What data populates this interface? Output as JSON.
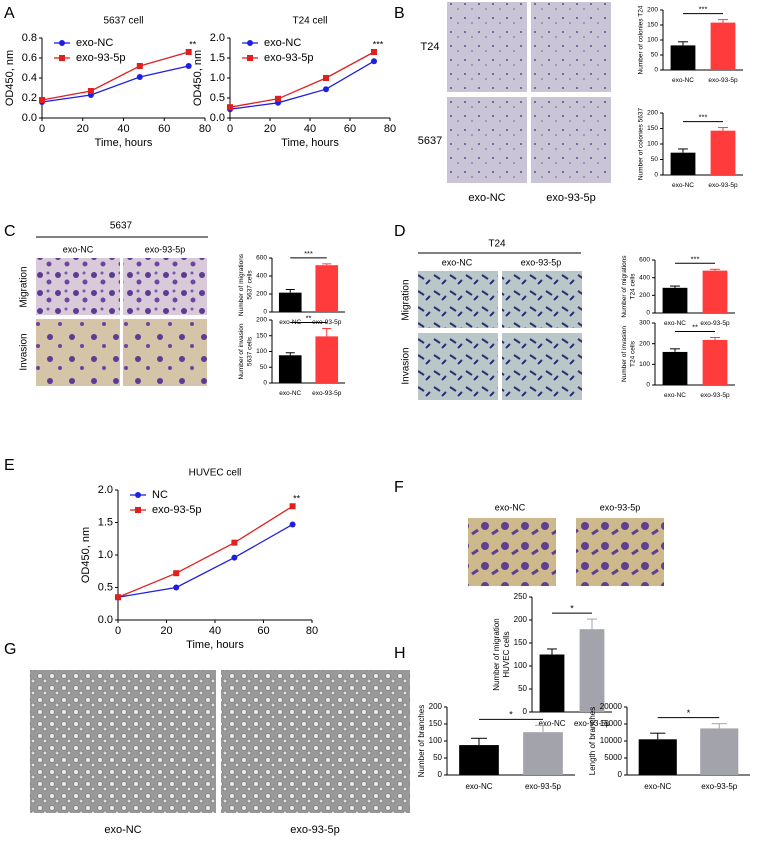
{
  "panels": {
    "letters": [
      "A",
      "B",
      "C",
      "D",
      "E",
      "F",
      "G",
      "H"
    ],
    "B": {
      "rows": [
        "T24",
        "5637"
      ],
      "cols": [
        "exo-NC",
        "exo-93-5p"
      ]
    },
    "C": {
      "header": "5637",
      "cols": [
        "exo-NC",
        "exo-93-5p"
      ],
      "rows": [
        "Migration",
        "Invasion"
      ]
    },
    "D": {
      "header": "T24",
      "cols": [
        "exo-NC",
        "exo-93-5p"
      ],
      "rows": [
        "Migration",
        "Invasion"
      ]
    },
    "F": {
      "cols": [
        "exo-NC",
        "exo-93-5p"
      ]
    },
    "G": {
      "cols": [
        "exo-NC",
        "exo-93-5p"
      ]
    }
  },
  "chart_data": [
    {
      "type": "line",
      "title": "5637 cell",
      "xlabel": "Time, hours",
      "ylabel": "OD450, nm",
      "x": [
        0,
        24,
        48,
        72
      ],
      "series": [
        {
          "name": "exo-NC",
          "color": "#1f1fe0",
          "marker": "circle",
          "values": [
            0.16,
            0.23,
            0.41,
            0.52
          ]
        },
        {
          "name": "exo-93-5p",
          "color": "#e01f1f",
          "marker": "square",
          "values": [
            0.18,
            0.27,
            0.52,
            0.66
          ]
        }
      ],
      "xlim": [
        0,
        80
      ],
      "xticks": [
        0,
        20,
        40,
        60,
        80
      ],
      "ylim": [
        0,
        0.8
      ],
      "yticks": [
        {
          "value": 0,
          "label": "0.0"
        },
        0.2,
        0.4,
        0.6,
        0.8
      ],
      "annotation": "**"
    },
    {
      "type": "line",
      "title": "T24 cell",
      "xlabel": "Time, hours",
      "ylabel": "OD450, nm",
      "x": [
        0,
        24,
        48,
        72
      ],
      "series": [
        {
          "name": "exo-NC",
          "color": "#1f1fe0",
          "marker": "circle",
          "values": [
            0.22,
            0.38,
            0.72,
            1.42
          ]
        },
        {
          "name": "exo-93-5p",
          "color": "#e01f1f",
          "marker": "square",
          "values": [
            0.27,
            0.48,
            1.0,
            1.65
          ]
        }
      ],
      "xlim": [
        0,
        80
      ],
      "xticks": [
        0,
        20,
        40,
        60,
        80
      ],
      "ylim": [
        0,
        2
      ],
      "yticks": [
        {
          "value": 0,
          "label": "0.0"
        },
        0.5,
        {
          "value": 1,
          "label": "1.0"
        },
        1.5,
        {
          "value": 2,
          "label": "2.0"
        }
      ],
      "annotation": "***"
    },
    {
      "type": "bar",
      "ylabel": [
        "Number of colonies T24"
      ],
      "categories": [
        "exo-NC",
        "exo-93-5p"
      ],
      "values": [
        82,
        158
      ],
      "errors": [
        12,
        10
      ],
      "colors": [
        "#000000",
        "#ff3b3b"
      ],
      "ylim": [
        0,
        200
      ],
      "yticks": [
        0,
        50,
        100,
        150,
        200
      ],
      "annotation": "***"
    },
    {
      "type": "bar",
      "ylabel": [
        "Number of colonies 5637"
      ],
      "categories": [
        "exo-NC",
        "exo-93-5p"
      ],
      "values": [
        72,
        143
      ],
      "errors": [
        12,
        10
      ],
      "colors": [
        "#000000",
        "#ff3b3b"
      ],
      "ylim": [
        0,
        200
      ],
      "yticks": [
        0,
        50,
        100,
        150,
        200
      ],
      "annotation": "***"
    },
    {
      "type": "bar",
      "ylabel": [
        "Number of migrations",
        "5637 cells"
      ],
      "categories": [
        "exo-NC",
        "exo-93-5p"
      ],
      "values": [
        215,
        520
      ],
      "errors": [
        35,
        15
      ],
      "colors": [
        "#000000",
        "#ff3b3b"
      ],
      "ylim": [
        0,
        600
      ],
      "yticks": [
        0,
        200,
        400,
        600
      ],
      "annotation": "***"
    },
    {
      "type": "bar",
      "ylabel": [
        "Number of invasion",
        "5637 cells"
      ],
      "categories": [
        "exo-NC",
        "exo-93-5p"
      ],
      "values": [
        88,
        148
      ],
      "errors": [
        8,
        25
      ],
      "colors": [
        "#000000",
        "#ff3b3b"
      ],
      "ylim": [
        0,
        200
      ],
      "yticks": [
        0,
        50,
        100,
        150,
        200
      ],
      "annotation": "**"
    },
    {
      "type": "bar",
      "ylabel": [
        "Number of migrations",
        "T24 cells"
      ],
      "categories": [
        "exo-NC",
        "exo-93-5p"
      ],
      "values": [
        285,
        480
      ],
      "errors": [
        20,
        15
      ],
      "colors": [
        "#000000",
        "#ff3b3b"
      ],
      "ylim": [
        0,
        600
      ],
      "yticks": [
        0,
        200,
        400,
        600
      ],
      "annotation": "***"
    },
    {
      "type": "bar",
      "ylabel": [
        "Number of invasion",
        "T24 cells"
      ],
      "categories": [
        "exo-NC",
        "exo-93-5p"
      ],
      "values": [
        160,
        218
      ],
      "errors": [
        15,
        12
      ],
      "colors": [
        "#000000",
        "#ff3b3b"
      ],
      "ylim": [
        0,
        300
      ],
      "yticks": [
        0,
        100,
        200,
        300
      ],
      "annotation": "**"
    },
    {
      "type": "line",
      "title": "HUVEC cell",
      "xlabel": "Time, hours",
      "ylabel": "OD450, nm",
      "x": [
        0,
        24,
        48,
        72
      ],
      "series": [
        {
          "name": "NC",
          "color": "#1f1fe0",
          "marker": "circle",
          "values": [
            0.35,
            0.5,
            0.96,
            1.47
          ]
        },
        {
          "name": "exo-93-5p",
          "color": "#e01f1f",
          "marker": "square",
          "values": [
            0.35,
            0.72,
            1.19,
            1.75
          ]
        }
      ],
      "xlim": [
        0,
        80
      ],
      "xticks": [
        0,
        20,
        40,
        60,
        80
      ],
      "ylim": [
        0,
        2
      ],
      "yticks": [
        {
          "value": 0,
          "label": "0.0"
        },
        0.5,
        {
          "value": 1,
          "label": "1.0"
        },
        1.5,
        {
          "value": 2,
          "label": "2.0"
        }
      ],
      "annotation": "**"
    },
    {
      "type": "bar",
      "ylabel": [
        "Number of migration",
        "HUVEC cells"
      ],
      "categories": [
        "exo-NC",
        "exo-93-5p"
      ],
      "values": [
        125,
        180
      ],
      "errors": [
        12,
        22
      ],
      "colors": [
        "#000000",
        "#a3a3ab"
      ],
      "ylim": [
        0,
        250
      ],
      "yticks": [
        0,
        50,
        100,
        150,
        200,
        250
      ],
      "annotation": "*"
    },
    {
      "type": "bar",
      "ylabel": [
        "Number of branches"
      ],
      "categories": [
        "exo-NC",
        "exo-93-5p"
      ],
      "values": [
        88,
        126
      ],
      "errors": [
        20,
        20
      ],
      "colors": [
        "#000000",
        "#a3a3ab"
      ],
      "ylim": [
        0,
        200
      ],
      "yticks": [
        0,
        50,
        100,
        150,
        200
      ],
      "annotation": "*"
    },
    {
      "type": "bar",
      "ylabel": [
        "Length of branches"
      ],
      "categories": [
        "exo-NC",
        "exo-93-5p"
      ],
      "values": [
        10500,
        13700
      ],
      "errors": [
        1800,
        1400
      ],
      "colors": [
        "#000000",
        "#a3a3ab"
      ],
      "ylim": [
        0,
        20000
      ],
      "yticks": [
        0,
        5000,
        10000,
        15000,
        20000
      ],
      "annotation": "*"
    }
  ]
}
